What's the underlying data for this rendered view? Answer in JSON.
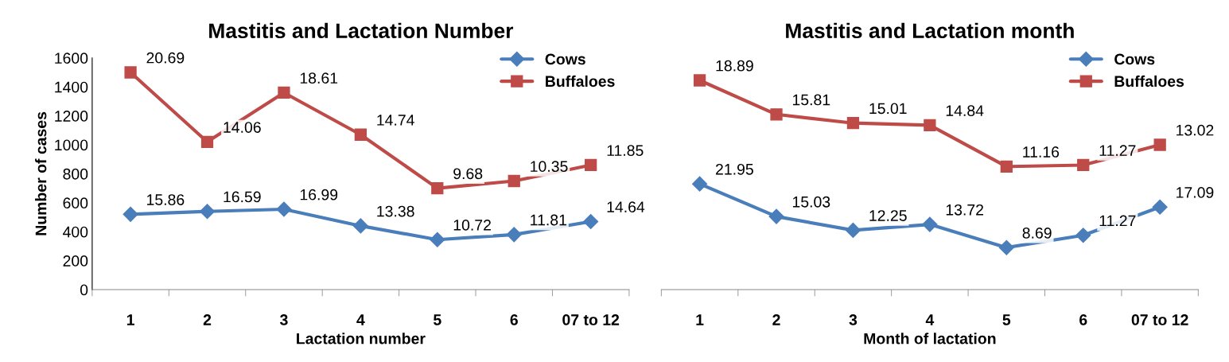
{
  "chart_data": [
    {
      "type": "line",
      "title": "Mastitis and Lactation Number",
      "xlabel": "Lactation number",
      "ylabel": "Number of cases",
      "categories": [
        "1",
        "2",
        "3",
        "4",
        "5",
        "6",
        "07 to 12"
      ],
      "ylim": [
        0,
        1600
      ],
      "yticks": [
        0,
        200,
        400,
        600,
        800,
        1000,
        1200,
        1400,
        1600
      ],
      "legend": "top right",
      "grid": false,
      "line_style": "solid",
      "series": [
        {
          "name": "Cows",
          "color": "#4a7ebb",
          "marker": "diamond",
          "values": [
            520,
            540,
            555,
            440,
            345,
            380,
            470
          ]
        },
        {
          "name": "Buffaloes",
          "color": "#be4b48",
          "marker": "square",
          "values": [
            1500,
            1020,
            1360,
            1070,
            700,
            750,
            860
          ]
        }
      ],
      "annotations": [
        {
          "text": "15.86",
          "x": "1",
          "y": 520
        },
        {
          "text": "16.59",
          "x": "2",
          "y": 540
        },
        {
          "text": "16.99",
          "x": "3",
          "y": 555
        },
        {
          "text": "13.38",
          "x": "4",
          "y": 440
        },
        {
          "text": "10.72",
          "x": "5",
          "y": 345
        },
        {
          "text": "11.81",
          "x": "6",
          "y": 380
        },
        {
          "text": "14.64",
          "x": "07 to 12",
          "y": 470
        },
        {
          "text": "20.69",
          "x": "1",
          "y": 1500
        },
        {
          "text": "14.06",
          "x": "2",
          "y": 1020
        },
        {
          "text": "18.61",
          "x": "3",
          "y": 1360
        },
        {
          "text": "14.74",
          "x": "4",
          "y": 1070
        },
        {
          "text": "9.68",
          "x": "5",
          "y": 700
        },
        {
          "text": "10.35",
          "x": "6",
          "y": 750
        },
        {
          "text": "11.85",
          "x": "07 to 12",
          "y": 860
        }
      ]
    },
    {
      "type": "line",
      "title": "Mastitis and Lactation month",
      "xlabel": "Month of lactation",
      "categories": [
        "1",
        "2",
        "3",
        "4",
        "5",
        "6",
        "07 to 12"
      ],
      "ylim": [
        0,
        1600
      ],
      "yticks": [
        0,
        200,
        400,
        600,
        800,
        1000,
        1200,
        1400,
        1600
      ],
      "tick_labels": "x",
      "legend": "top right",
      "grid": false,
      "line_style": "solid",
      "series": [
        {
          "name": "Cows",
          "color": "#4a7ebb",
          "marker": "diamond",
          "values": [
            730,
            505,
            410,
            450,
            290,
            375,
            570
          ]
        },
        {
          "name": "Buffaloes",
          "color": "#be4b48",
          "marker": "square",
          "values": [
            1445,
            1210,
            1150,
            1135,
            850,
            860,
            1000
          ]
        }
      ],
      "annotations": [
        {
          "text": "21.95",
          "x": "1",
          "y": 730
        },
        {
          "text": "15.03",
          "x": "2",
          "y": 505
        },
        {
          "text": "12.25",
          "x": "3",
          "y": 410
        },
        {
          "text": "13.72",
          "x": "4",
          "y": 450
        },
        {
          "text": "8.69",
          "x": "5",
          "y": 290
        },
        {
          "text": "11.27",
          "x": "6",
          "y": 375
        },
        {
          "text": "17.09",
          "x": "07 to 12",
          "y": 570
        },
        {
          "text": "18.89",
          "x": "1",
          "y": 1445
        },
        {
          "text": "15.81",
          "x": "2",
          "y": 1210
        },
        {
          "text": "15.01",
          "x": "3",
          "y": 1150
        },
        {
          "text": "14.84",
          "x": "4",
          "y": 1135
        },
        {
          "text": "11.16",
          "x": "5",
          "y": 850
        },
        {
          "text": "11.27",
          "x": "6",
          "y": 860
        },
        {
          "text": "13.02",
          "x": "07 to 12",
          "y": 1000
        }
      ]
    }
  ]
}
